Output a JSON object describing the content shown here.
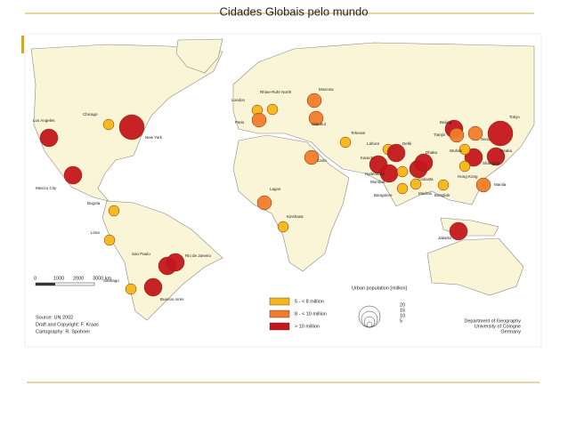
{
  "title": "Cidades Globais pelo mundo",
  "legend": {
    "title": "Urban population [million]",
    "classes": [
      {
        "label": "5 - < 8 million",
        "color": "#f5b617"
      },
      {
        "label": "8 - < 10 million",
        "color": "#f07c2a"
      },
      {
        "label": "> 10 million",
        "color": "#c4161c"
      }
    ],
    "sizes": [
      "20",
      "15",
      "10",
      "5"
    ]
  },
  "scale": [
    "0",
    "1000",
    "2000",
    "3000 km"
  ],
  "source": [
    "Source: UN 2002",
    "Draft and Copyright: F. Kraas",
    "Cartography: R. Spohner"
  ],
  "credit": [
    "Department of Geography",
    "University of Cologne",
    "Germany"
  ],
  "cities": [
    {
      "name": "Los Angeles",
      "class": 2
    },
    {
      "name": "Chicago",
      "class": 0
    },
    {
      "name": "New York",
      "class": 2
    },
    {
      "name": "Mexico City",
      "class": 2
    },
    {
      "name": "Bogota",
      "class": 0
    },
    {
      "name": "Lima",
      "class": 0
    },
    {
      "name": "Sao Paulo",
      "class": 2
    },
    {
      "name": "Rio de Janeiro",
      "class": 2
    },
    {
      "name": "Santiago",
      "class": 0
    },
    {
      "name": "Buenos Aires",
      "class": 2
    },
    {
      "name": "London",
      "class": 0
    },
    {
      "name": "Rhine-Ruhr North",
      "class": 0
    },
    {
      "name": "Paris",
      "class": 1
    },
    {
      "name": "Moscow",
      "class": 1
    },
    {
      "name": "Istanbul",
      "class": 1
    },
    {
      "name": "Teheran",
      "class": 0
    },
    {
      "name": "Cairo",
      "class": 1
    },
    {
      "name": "Lagos",
      "class": 1
    },
    {
      "name": "Kinshasa",
      "class": 0
    },
    {
      "name": "Karachi",
      "class": 2
    },
    {
      "name": "Lahore",
      "class": 0
    },
    {
      "name": "Delhi",
      "class": 2
    },
    {
      "name": "Mumbai",
      "class": 2
    },
    {
      "name": "Hyderabad",
      "class": 0
    },
    {
      "name": "Bangalore",
      "class": 0
    },
    {
      "name": "Madras",
      "class": 0
    },
    {
      "name": "Calcutta",
      "class": 2
    },
    {
      "name": "Dhaka",
      "class": 2
    },
    {
      "name": "Bangkok",
      "class": 0
    },
    {
      "name": "Beijing",
      "class": 2
    },
    {
      "name": "Tianjin",
      "class": 1
    },
    {
      "name": "Seoul",
      "class": 1
    },
    {
      "name": "Tokyo",
      "class": 2
    },
    {
      "name": "Osaka",
      "class": 2
    },
    {
      "name": "Shanghai",
      "class": 2
    },
    {
      "name": "Wuhan",
      "class": 0
    },
    {
      "name": "Hong Kong",
      "class": 0
    },
    {
      "name": "Manila",
      "class": 1
    },
    {
      "name": "Jakarta",
      "class": 2
    }
  ]
}
